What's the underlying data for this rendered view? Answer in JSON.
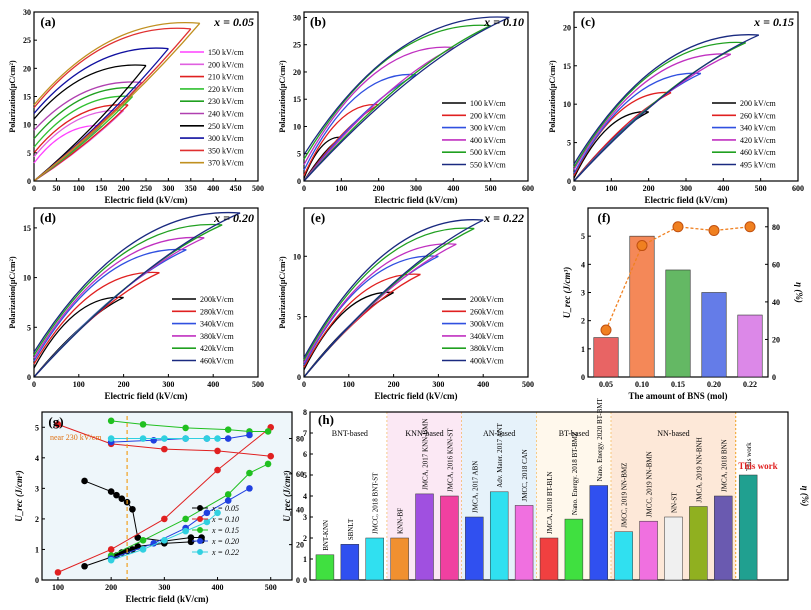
{
  "figure": {
    "panels": [
      {
        "id": "a",
        "tag": "(a)",
        "xparam": "x = 0.05",
        "xlabel": "Electric field (kV/cm)",
        "ylabel": "Polarization(μC/cm²)",
        "xlim": [
          0,
          500
        ],
        "ylim": [
          0,
          30
        ],
        "xticks": [
          0,
          50,
          100,
          150,
          200,
          250,
          300,
          350,
          400,
          450,
          500
        ],
        "yticks": [
          0,
          5,
          10,
          15,
          20,
          25,
          30
        ],
        "legend": [
          "150 kV/cm",
          "200 kV/cm",
          "210 kV/cm",
          "220 kV/cm",
          "230 kV/cm",
          "240 kV/cm",
          "250 kV/cm",
          "300 kV/cm",
          "350 kV/cm",
          "370 kV/cm"
        ]
      },
      {
        "id": "b",
        "tag": "(b)",
        "xparam": "x = 0.10",
        "xlabel": "Electric field (kV/cm)",
        "ylabel": "Polarization(μC/cm²)",
        "xlim": [
          0,
          600
        ],
        "ylim": [
          0,
          31
        ],
        "xticks": [
          0,
          100,
          200,
          300,
          400,
          500,
          600
        ],
        "yticks": [
          0,
          5,
          10,
          15,
          20,
          25,
          30
        ],
        "legend": [
          "100 kV/cm",
          "200 kV/cm",
          "300 kV/cm",
          "400 kV/cm",
          "500 kV/cm",
          "550 kV/cm"
        ]
      },
      {
        "id": "c",
        "tag": "(c)",
        "xparam": "x = 0.15",
        "xlabel": "Electric field (kV/cm)",
        "ylabel": "Polarization(μC/cm²)",
        "xlim": [
          0,
          600
        ],
        "ylim": [
          0,
          22
        ],
        "xticks": [
          0,
          100,
          200,
          300,
          400,
          500,
          600
        ],
        "yticks": [
          0,
          5,
          10,
          15,
          20
        ],
        "legend": [
          "200 kV/cm",
          "260 kV/cm",
          "340 kV/cm",
          "420 kV/cm",
          "460 kV/cm",
          "495 kV/cm"
        ]
      },
      {
        "id": "d",
        "tag": "(d)",
        "xparam": "x = 0.20",
        "xlabel": "Electric field (kV/cm)",
        "ylabel": "Polarization(μC/cm²)",
        "xlim": [
          0,
          500
        ],
        "ylim": [
          0,
          17
        ],
        "xticks": [
          0,
          100,
          200,
          300,
          400,
          500
        ],
        "yticks": [
          0,
          5,
          10,
          15
        ],
        "legend": [
          "200kV/cm",
          "280kV/cm",
          "340kV/cm",
          "380kV/cm",
          "420kV/cm",
          "460kV/cm"
        ]
      },
      {
        "id": "e",
        "tag": "(e)",
        "xparam": "x = 0.22",
        "xlabel": "Electric field (kV/cm)",
        "ylabel": "Polarization(μC/cm²)",
        "xlim": [
          0,
          500
        ],
        "ylim": [
          0,
          14
        ],
        "xticks": [
          0,
          100,
          200,
          300,
          400,
          500
        ],
        "yticks": [
          0,
          5,
          10
        ],
        "legend": [
          "200kV/cm",
          "260kV/cm",
          "300kV/cm",
          "340kV/cm",
          "380kV/cm",
          "400kV/cm"
        ]
      },
      {
        "id": "f",
        "tag": "(f)",
        "xlabel": "The amount of BNS (mol)",
        "ylabel": "U_rec (J/cm³)",
        "y2label": "η (%)",
        "ylim": [
          0,
          6
        ],
        "y2lim": [
          0,
          90
        ],
        "yticks": [
          0,
          1,
          2,
          3,
          4,
          5
        ],
        "y2ticks": [
          0,
          20,
          40,
          60,
          80
        ]
      },
      {
        "id": "g",
        "tag": "(g)",
        "annotation": "near 230 kV/cm",
        "xlabel": "Electric field (kV/cm)",
        "ylabel": "U_rec (J/cm³)",
        "y2label": "η (%)",
        "xlim": [
          70,
          540
        ],
        "ylim": [
          0,
          5.5
        ],
        "y2lim": [
          0,
          95
        ],
        "xticks": [
          100,
          200,
          300,
          400,
          500
        ],
        "yticks": [
          0,
          1,
          2,
          3,
          4,
          5
        ],
        "y2ticks": [
          0,
          20,
          40,
          60,
          80
        ],
        "legend": [
          "x = 0.05",
          "x = 0.10",
          "x = 0.15",
          "x = 0.20",
          "x = 0.22"
        ]
      },
      {
        "id": "h",
        "tag": "(h)",
        "ylabel": "U_rec (J/cm³)",
        "y2label": "η (%)",
        "ylim": [
          0,
          8
        ],
        "yticks": [
          0,
          1,
          2,
          3,
          4,
          5,
          6,
          7,
          8
        ],
        "groups": [
          "BNT-based",
          "KNN-based",
          "AN-based",
          "BT-based",
          "NN-based"
        ],
        "highlight": "This work"
      }
    ]
  },
  "chart_data": [
    {
      "type": "line",
      "panel": "a",
      "x_param": "x = 0.05",
      "series": [
        {
          "name": "150 kV/cm",
          "Emax": 150,
          "Pmax": 9.8,
          "Pr": 3.2
        },
        {
          "name": "200 kV/cm",
          "Emax": 200,
          "Pmax": 12.5,
          "Pr": 4.3
        },
        {
          "name": "210 kV/cm",
          "Emax": 210,
          "Pmax": 13.5,
          "Pr": 5.0
        },
        {
          "name": "220 kV/cm",
          "Emax": 220,
          "Pmax": 15.0,
          "Pr": 6.0
        },
        {
          "name": "230 kV/cm",
          "Emax": 230,
          "Pmax": 16.5,
          "Pr": 7.5
        },
        {
          "name": "240 kV/cm",
          "Emax": 240,
          "Pmax": 17.5,
          "Pr": 9.0
        },
        {
          "name": "250 kV/cm",
          "Emax": 250,
          "Pmax": 20.5,
          "Pr": 11.0
        },
        {
          "name": "300 kV/cm",
          "Emax": 300,
          "Pmax": 23.5,
          "Pr": 12.0
        },
        {
          "name": "350 kV/cm",
          "Emax": 350,
          "Pmax": 27.0,
          "Pr": 13.0
        },
        {
          "name": "370 kV/cm",
          "Emax": 370,
          "Pmax": 28.0,
          "Pr": 13.5
        }
      ]
    },
    {
      "type": "line",
      "panel": "b",
      "x_param": "x = 0.10",
      "series": [
        {
          "name": "100 kV/cm",
          "Emax": 100,
          "Pmax": 8.0,
          "Pr": 0.5
        },
        {
          "name": "200 kV/cm",
          "Emax": 200,
          "Pmax": 14.0,
          "Pr": 1.0
        },
        {
          "name": "300 kV/cm",
          "Emax": 300,
          "Pmax": 19.5,
          "Pr": 2.0
        },
        {
          "name": "400 kV/cm",
          "Emax": 400,
          "Pmax": 24.5,
          "Pr": 3.0
        },
        {
          "name": "500 kV/cm",
          "Emax": 500,
          "Pmax": 28.5,
          "Pr": 4.0
        },
        {
          "name": "550 kV/cm",
          "Emax": 550,
          "Pmax": 30.0,
          "Pr": 4.8
        }
      ]
    },
    {
      "type": "line",
      "panel": "c",
      "x_param": "x = 0.15",
      "series": [
        {
          "name": "200 kV/cm",
          "Emax": 200,
          "Pmax": 9.0,
          "Pr": 0.4
        },
        {
          "name": "260 kV/cm",
          "Emax": 260,
          "Pmax": 11.5,
          "Pr": 0.7
        },
        {
          "name": "340 kV/cm",
          "Emax": 340,
          "Pmax": 14.0,
          "Pr": 1.0
        },
        {
          "name": "420 kV/cm",
          "Emax": 420,
          "Pmax": 16.5,
          "Pr": 1.5
        },
        {
          "name": "460 kV/cm",
          "Emax": 460,
          "Pmax": 18.0,
          "Pr": 1.8
        },
        {
          "name": "495 kV/cm",
          "Emax": 495,
          "Pmax": 19.0,
          "Pr": 2.2
        }
      ]
    },
    {
      "type": "line",
      "panel": "d",
      "x_param": "x = 0.20",
      "series": [
        {
          "name": "200kV/cm",
          "Emax": 200,
          "Pmax": 8.0,
          "Pr": 0.9
        },
        {
          "name": "280kV/cm",
          "Emax": 280,
          "Pmax": 10.5,
          "Pr": 1.3
        },
        {
          "name": "340kV/cm",
          "Emax": 340,
          "Pmax": 12.8,
          "Pr": 1.6
        },
        {
          "name": "380kV/cm",
          "Emax": 380,
          "Pmax": 14.0,
          "Pr": 1.9
        },
        {
          "name": "420kV/cm",
          "Emax": 420,
          "Pmax": 15.3,
          "Pr": 2.2
        },
        {
          "name": "460kV/cm",
          "Emax": 460,
          "Pmax": 16.5,
          "Pr": 2.5
        }
      ]
    },
    {
      "type": "line",
      "panel": "e",
      "x_param": "x = 0.22",
      "series": [
        {
          "name": "200kV/cm",
          "Emax": 200,
          "Pmax": 7.0,
          "Pr": 0.6
        },
        {
          "name": "260kV/cm",
          "Emax": 260,
          "Pmax": 8.5,
          "Pr": 0.8
        },
        {
          "name": "300kV/cm",
          "Emax": 300,
          "Pmax": 10.0,
          "Pr": 1.0
        },
        {
          "name": "340kV/cm",
          "Emax": 340,
          "Pmax": 11.0,
          "Pr": 1.2
        },
        {
          "name": "380kV/cm",
          "Emax": 380,
          "Pmax": 12.3,
          "Pr": 1.4
        },
        {
          "name": "400kV/cm",
          "Emax": 400,
          "Pmax": 13.0,
          "Pr": 1.6
        }
      ]
    },
    {
      "type": "bar",
      "panel": "f",
      "categories": [
        "0.05",
        "0.10",
        "0.15",
        "0.20",
        "0.22"
      ],
      "values": [
        1.4,
        5.0,
        3.8,
        3.0,
        2.2
      ],
      "eta": [
        25,
        70,
        80,
        78,
        80
      ],
      "colors": [
        "#e03030",
        "#f06020",
        "#30a030",
        "#3050e0",
        "#d060e0"
      ]
    },
    {
      "type": "scatter",
      "panel": "g",
      "series": [
        {
          "name": "x = 0.05",
          "color": "#000000",
          "E": [
            150,
            200,
            210,
            220,
            230,
            240,
            250,
            300,
            350,
            370
          ],
          "U": [
            0.45,
            0.75,
            0.8,
            0.9,
            0.95,
            1.0,
            1.1,
            1.2,
            1.25,
            1.3
          ],
          "eta": [
            56,
            50,
            48,
            46,
            44,
            40,
            24,
            22,
            24,
            24
          ]
        },
        {
          "name": "x = 0.10",
          "color": "#e02020",
          "E": [
            100,
            200,
            300,
            400,
            500
          ],
          "U": [
            0.25,
            1.0,
            2.0,
            3.6,
            5.0
          ],
          "eta": [
            88,
            77,
            74,
            73,
            70
          ]
        },
        {
          "name": "x = 0.15",
          "color": "#20c020",
          "E": [
            200,
            260,
            340,
            420,
            460,
            495
          ],
          "U": [
            0.8,
            1.3,
            2.0,
            2.8,
            3.5,
            3.8
          ],
          "eta": [
            90,
            88,
            86,
            85,
            84,
            84
          ]
        },
        {
          "name": "x = 0.20",
          "color": "#2040e0",
          "E": [
            200,
            280,
            340,
            380,
            420,
            460
          ],
          "U": [
            0.7,
            1.2,
            1.7,
            2.2,
            2.6,
            3.0
          ],
          "eta": [
            78,
            79,
            80,
            80,
            80,
            82
          ]
        },
        {
          "name": "x = 0.22",
          "color": "#30d0e0",
          "E": [
            200,
            260,
            300,
            340,
            380,
            400
          ],
          "U": [
            0.65,
            1.0,
            1.3,
            1.6,
            1.9,
            2.2
          ],
          "eta": [
            80,
            80,
            80,
            80,
            80,
            80
          ]
        }
      ]
    },
    {
      "type": "bar",
      "panel": "h",
      "series": [
        {
          "label": "BNT-KNN",
          "ref": "",
          "group": "BNT-based",
          "value": 1.2,
          "color": "#40e040"
        },
        {
          "label": "SBNLT",
          "ref": "",
          "group": "BNT-based",
          "value": 1.7,
          "color": "#3050f0"
        },
        {
          "label": "BNT-ST",
          "ref": "JMCC, 2018",
          "group": "BNT-based",
          "value": 2.0,
          "color": "#30e0f0"
        },
        {
          "label": "KNN-BF",
          "ref": "",
          "group": "KNN-based",
          "value": 2.0,
          "color": "#f09030"
        },
        {
          "label": "KNN-BMN",
          "ref": "JMCA, 2017",
          "group": "KNN-based",
          "value": 4.1,
          "color": "#a050e0"
        },
        {
          "label": "KNN-ST",
          "ref": "JMCA, 2016",
          "group": "KNN-based",
          "value": 4.0,
          "color": "#f040a0"
        },
        {
          "label": "ABN",
          "ref": "JMCA, 2017",
          "group": "AN-based",
          "value": 3.0,
          "color": "#3050f0"
        },
        {
          "label": "ANT",
          "ref": "Adv. Mater. 2017",
          "group": "AN-based",
          "value": 4.2,
          "color": "#30e0f0"
        },
        {
          "label": "CAN",
          "ref": "JMCC, 2018",
          "group": "AN-based",
          "value": 3.55,
          "color": "#f070e0"
        },
        {
          "label": "BT-BLN",
          "ref": "JMCA, 2018",
          "group": "BT-based",
          "value": 2.0,
          "color": "#f04040"
        },
        {
          "label": "BT-BMZ",
          "ref": "Nano. Energy. 2018",
          "group": "BT-based",
          "value": 2.9,
          "color": "#40e040"
        },
        {
          "label": "BT-BMT",
          "ref": "Nano. Energy. 2020",
          "group": "BT-based",
          "value": 4.5,
          "color": "#3050f0"
        },
        {
          "label": "NN-BMZ",
          "ref": "JMCC, 2019",
          "group": "NN-based",
          "value": 2.3,
          "color": "#30e0f0"
        },
        {
          "label": "NN-BMN",
          "ref": "JMCC, 2019",
          "group": "NN-based",
          "value": 2.8,
          "color": "#f070e0"
        },
        {
          "label": "NN-ST",
          "ref": "",
          "group": "NN-based",
          "value": 3.0,
          "color": "#f0f0f0"
        },
        {
          "label": "NN-BNH",
          "ref": "JMCA, 2019",
          "group": "NN-based",
          "value": 3.5,
          "color": "#90b020"
        },
        {
          "label": "BNN",
          "ref": "JMCA, 2018",
          "group": "NN-based",
          "value": 4.0,
          "color": "#6a5ab0"
        },
        {
          "label": "This work",
          "ref": "",
          "group": "",
          "value": 5.0,
          "color": "#20a090"
        }
      ]
    }
  ]
}
